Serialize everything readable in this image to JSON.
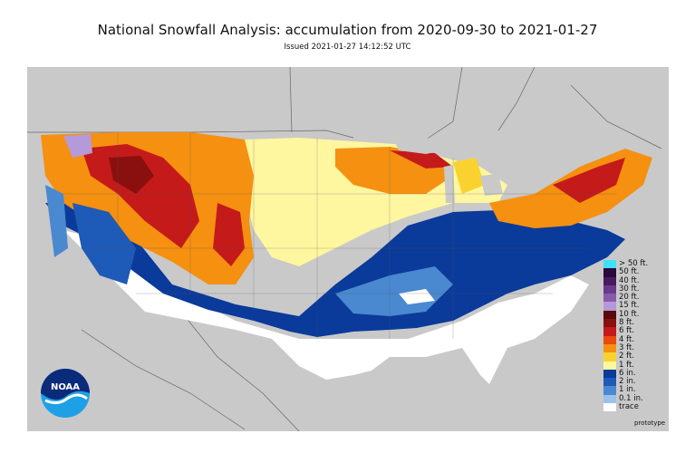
{
  "header": {
    "title": "National Snowfall Analysis: accumulation from 2020-09-30 to 2021-01-27",
    "issued": "Issued 2021-01-27 14:12:52 UTC"
  },
  "legend": {
    "items": [
      {
        "label": "> 50 ft.",
        "color": "#40e0f8"
      },
      {
        "label": "50 ft.",
        "color": "#2a0a3a"
      },
      {
        "label": "40 ft.",
        "color": "#4a1a5e"
      },
      {
        "label": "30 ft.",
        "color": "#6a3a8a"
      },
      {
        "label": "20 ft.",
        "color": "#8a5aaa"
      },
      {
        "label": "15 ft.",
        "color": "#b49ad8"
      },
      {
        "label": "10 ft.",
        "color": "#5a0a0a"
      },
      {
        "label": "8 ft.",
        "color": "#8a1010"
      },
      {
        "label": "6 ft.",
        "color": "#c41a1a"
      },
      {
        "label": "4 ft.",
        "color": "#e84a10"
      },
      {
        "label": "3 ft.",
        "color": "#f59010"
      },
      {
        "label": "2 ft.",
        "color": "#fad230"
      },
      {
        "label": "1 ft.",
        "color": "#fff6a0"
      },
      {
        "label": "6 in.",
        "color": "#0a3a9a"
      },
      {
        "label": "2 in.",
        "color": "#1e5ab8"
      },
      {
        "label": "1 in.",
        "color": "#4a88d0"
      },
      {
        "label": "0.1 in.",
        "color": "#9ac2ea"
      },
      {
        "label": "trace",
        "color": "#ffffff"
      }
    ]
  },
  "logo": {
    "text": "NOAA"
  },
  "footer": {
    "note": "prototype"
  },
  "map": {
    "background_color": "#c9c9c9",
    "boundary_color": "#666666"
  }
}
